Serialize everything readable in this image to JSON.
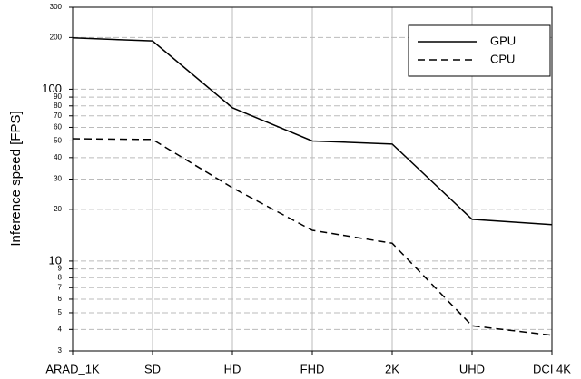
{
  "chart_data": {
    "type": "line",
    "y_label": "Inference speed [FPS]",
    "categories": [
      "ARAD_1K",
      "SD",
      "HD",
      "FHD",
      "2K",
      "UHD",
      "DCI 4K"
    ],
    "series": [
      {
        "name": "GPU",
        "color": "#000000",
        "line_style": "solid",
        "values": [
          199,
          191,
          78,
          50,
          48,
          17.5,
          16.3
        ]
      },
      {
        "name": "CPU",
        "color": "#000000",
        "line_style": "dashed",
        "values": [
          51.5,
          51,
          26.7,
          15.1,
          12.7,
          4.2,
          3.7
        ]
      }
    ],
    "log_scale": true,
    "ylim": [
      3,
      300
    ],
    "yticks": [
      3,
      4,
      5,
      6,
      7,
      8,
      9,
      10,
      20,
      30,
      40,
      50,
      60,
      70,
      80,
      90,
      100,
      200,
      300
    ],
    "grid": true,
    "legend_position": "upper right"
  }
}
